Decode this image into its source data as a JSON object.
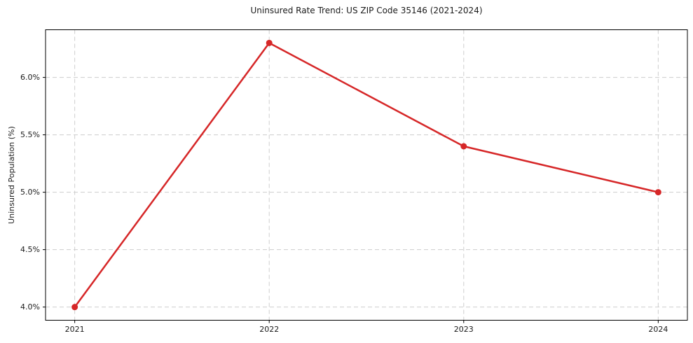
{
  "chart_data": {
    "type": "line",
    "title": "Uninsured Rate Trend: US ZIP Code 35146 (2021-2024)",
    "xlabel": "",
    "ylabel": "Uninsured Population (%)",
    "x": [
      2021,
      2022,
      2023,
      2024
    ],
    "values": [
      4.0,
      6.3,
      5.4,
      5.0
    ],
    "xticks": [
      2021,
      2022,
      2023,
      2024
    ],
    "xtick_labels": [
      "2021",
      "2022",
      "2023",
      "2024"
    ],
    "yticks": [
      4.0,
      4.5,
      5.0,
      5.5,
      6.0
    ],
    "ytick_labels": [
      "4.0%",
      "4.5%",
      "5.0%",
      "5.5%",
      "6.0%"
    ],
    "xlim": [
      2020.85,
      2024.15
    ],
    "ylim": [
      3.885,
      6.415
    ],
    "grid": true,
    "legend": "none",
    "line_color": "#d62728",
    "marker": "circle",
    "marker_color": "#d62728",
    "grid_color": "#cdcdcd",
    "text_color": "#1a1a1a",
    "background_color": "#ffffff"
  }
}
